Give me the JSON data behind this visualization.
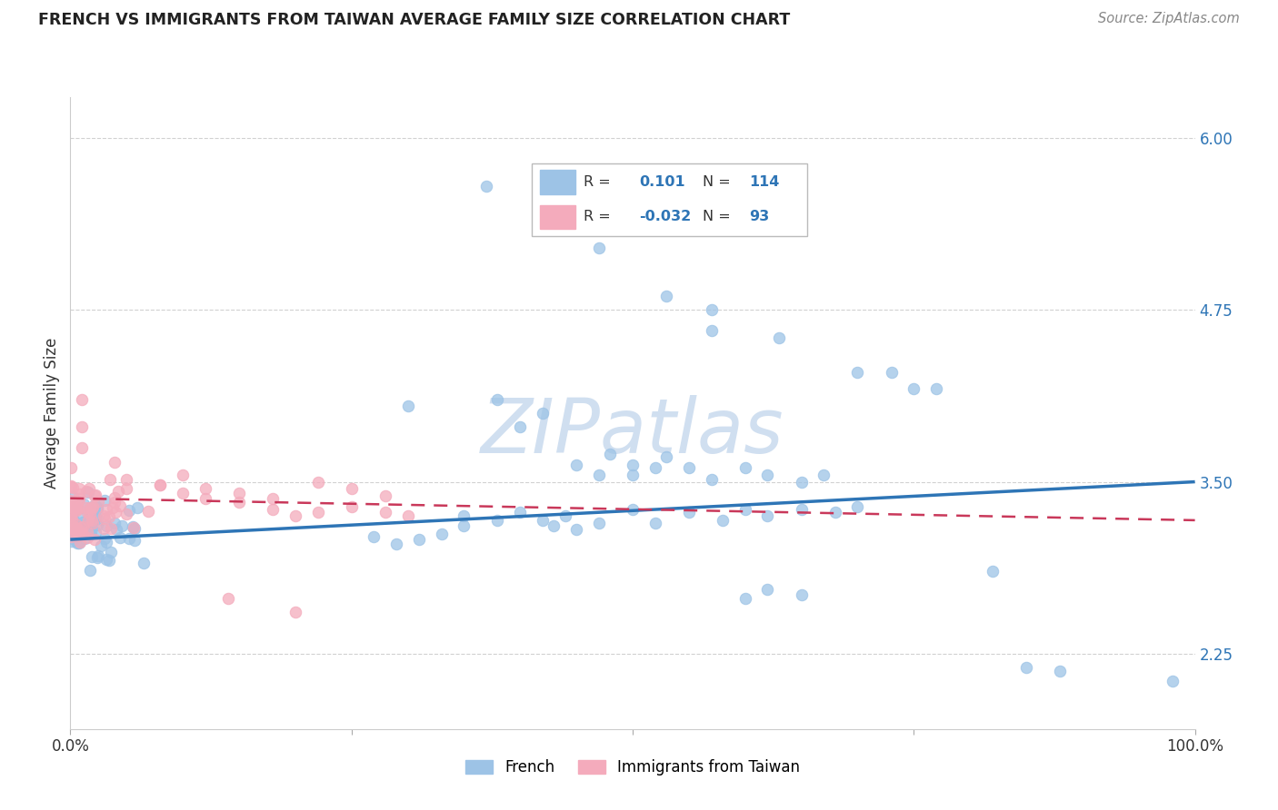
{
  "title": "FRENCH VS IMMIGRANTS FROM TAIWAN AVERAGE FAMILY SIZE CORRELATION CHART",
  "source": "Source: ZipAtlas.com",
  "ylabel": "Average Family Size",
  "yticks": [
    2.25,
    3.5,
    4.75,
    6.0
  ],
  "ytick_labels": [
    "2.25",
    "3.50",
    "4.75",
    "6.00"
  ],
  "legend_labels": [
    "French",
    "Immigrants from Taiwan"
  ],
  "legend_R_french": "0.101",
  "legend_N_french": "114",
  "legend_R_taiwan": "-0.032",
  "legend_N_taiwan": "93",
  "french_color": "#9DC3E6",
  "taiwan_color": "#F4ABBC",
  "french_line_color": "#2E75B6",
  "taiwan_line_color": "#C9385A",
  "watermark_color": "#D0DFF0",
  "bg_color": "#FFFFFF",
  "ymin": 1.7,
  "ymax": 6.3,
  "xmin": 0.0,
  "xmax": 1.0,
  "french_line": [
    3.08,
    3.5
  ],
  "taiwan_line": [
    3.38,
    3.22
  ]
}
